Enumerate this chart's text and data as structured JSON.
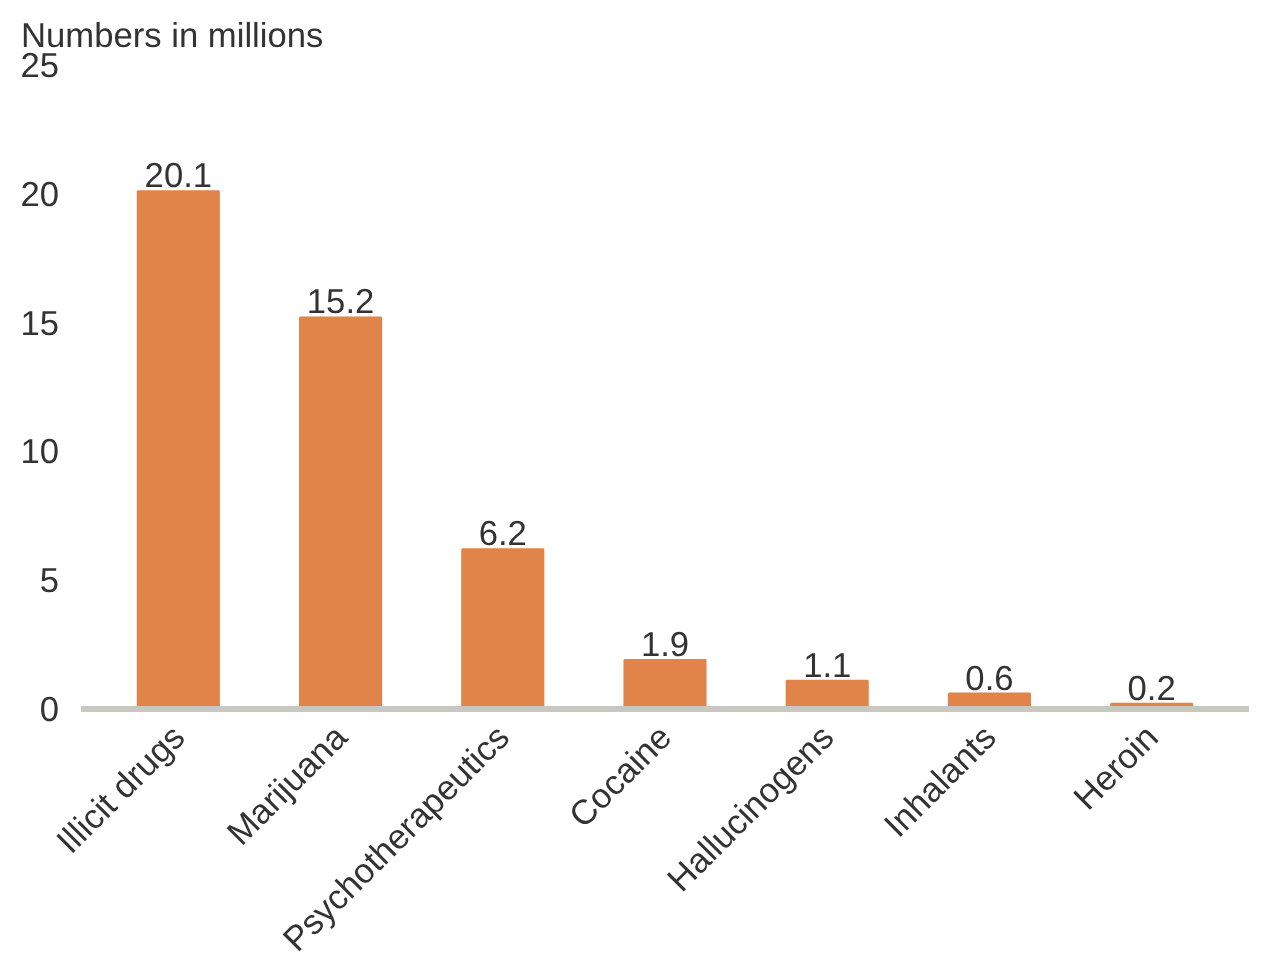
{
  "chart_data": {
    "type": "bar",
    "ylabel": "Numbers in millions",
    "categories": [
      "Illicit drugs",
      "Marijuana",
      "Psychotherapeutics",
      "Cocaine",
      "Hallucinogens",
      "Inhalants",
      "Heroin"
    ],
    "values": [
      20.1,
      15.2,
      6.2,
      1.9,
      1.1,
      0.6,
      0.2
    ],
    "color": "#e0844a",
    "ylim": [
      0,
      25
    ],
    "yticks": [
      0,
      5,
      10,
      15,
      20,
      25
    ],
    "grid": false,
    "data_labels": true
  }
}
